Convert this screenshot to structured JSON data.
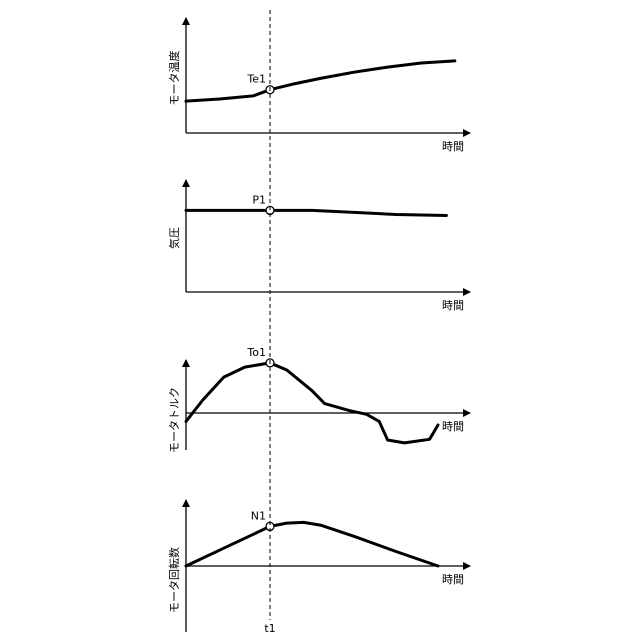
{
  "colors": {
    "ink": "#000000",
    "background": "#ffffff"
  },
  "chart_data": [
    {
      "type": "line",
      "ylabel": "モータ温度",
      "xlabel": "時間",
      "ylim": [
        0,
        100
      ],
      "marker": {
        "label": "Te1",
        "x": 1.0,
        "y": 42
      },
      "series": [
        {
          "x": [
            0,
            0.4,
            0.8,
            1.0,
            1.3,
            1.6,
            2.0,
            2.4,
            2.8,
            3.2
          ],
          "values": [
            31,
            33,
            36,
            42,
            48,
            53,
            59,
            64,
            68,
            70
          ]
        }
      ]
    },
    {
      "type": "line",
      "ylabel": "気圧",
      "xlabel": "時間",
      "ylim": [
        0,
        100
      ],
      "marker": {
        "label": "P1",
        "x": 1.0,
        "y": 80
      },
      "series": [
        {
          "x": [
            0,
            0.5,
            1.0,
            1.5,
            2.0,
            2.5,
            3.1
          ],
          "values": [
            80,
            80,
            80,
            80,
            78,
            76,
            75
          ]
        }
      ]
    },
    {
      "type": "line",
      "ylabel": "モータトルク",
      "xlabel": "時間",
      "ylim": [
        -40,
        100
      ],
      "marker": {
        "label": "To1",
        "x": 1.0,
        "y": 82
      },
      "series": [
        {
          "x": [
            0,
            0.2,
            0.45,
            0.7,
            1.0,
            1.2,
            1.5,
            1.65,
            1.95,
            2.15,
            2.3,
            2.4,
            2.6,
            2.9,
            3.0
          ],
          "values": [
            0,
            30,
            62,
            76,
            82,
            72,
            43,
            25,
            15,
            10,
            0,
            -26,
            -30,
            -25,
            -5
          ]
        }
      ]
    },
    {
      "type": "line",
      "ylabel": "モータ回転数",
      "xlabel": "時間",
      "ylim": [
        -100,
        100
      ],
      "marker": {
        "label": "N1",
        "x": 1.0,
        "y": 60
      },
      "series": [
        {
          "x": [
            0,
            0.5,
            1.0,
            1.2,
            1.4,
            1.6,
            2.0,
            2.5,
            3.0
          ],
          "values": [
            0,
            30,
            60,
            65,
            66,
            62,
            45,
            22,
            0
          ]
        }
      ]
    }
  ],
  "shared_marker": {
    "label": "t1",
    "x": 1.0
  }
}
